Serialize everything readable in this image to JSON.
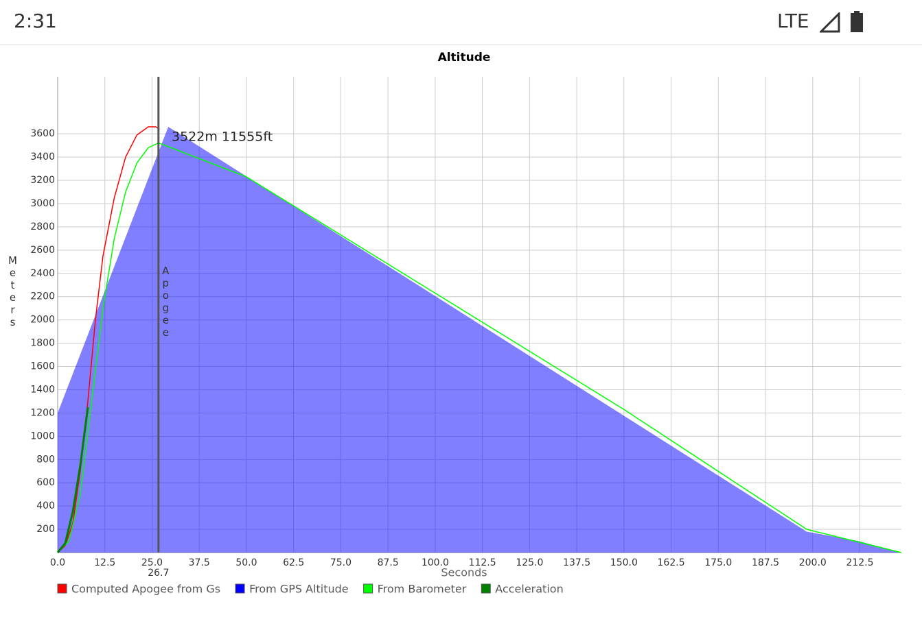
{
  "status_bar": {
    "time": "2:31",
    "network": "LTE"
  },
  "chart_data": {
    "type": "line",
    "title": "Altitude",
    "x_label": "Seconds",
    "y_label": "Meters",
    "annotation": "3522m 11555ft",
    "apogee_label": "Apogee",
    "apogee_x": 26.7,
    "xlim": [
      0,
      223.5
    ],
    "ylim": [
      0,
      4090
    ],
    "xticks": [
      {
        "value": 0,
        "label": "0.0"
      },
      12.5,
      {
        "value": 25,
        "label": "25.0"
      },
      37.5,
      {
        "value": 50,
        "label": "50.0"
      },
      62.5,
      {
        "value": 75,
        "label": "75.0"
      },
      87.5,
      {
        "value": 100,
        "label": "100.0"
      },
      112.5,
      {
        "value": 125,
        "label": "125.0"
      },
      137.5,
      {
        "value": 150,
        "label": "150.0"
      },
      162.5,
      {
        "value": 175,
        "label": "175.0"
      },
      187.5,
      {
        "value": 200,
        "label": "200.0"
      },
      212.5
    ],
    "yticks": [
      200,
      400,
      600,
      800,
      1000,
      1200,
      1400,
      1600,
      1800,
      2000,
      2200,
      2400,
      2600,
      2800,
      3000,
      3200,
      3400,
      3600
    ],
    "grid": true,
    "series": [
      {
        "name": "Computed Apogee from Gs",
        "color": "#ff0000",
        "style": "line",
        "x": [
          0,
          2,
          4,
          6,
          8,
          10,
          12,
          15,
          18,
          21,
          24,
          26,
          27
        ],
        "values": [
          0,
          60,
          250,
          700,
          1300,
          2000,
          2550,
          3050,
          3400,
          3590,
          3660,
          3660,
          3640
        ]
      },
      {
        "name": "From GPS Altitude",
        "color": "#0000ff",
        "style": "area",
        "x": [
          0,
          29.3,
          198.4,
          212,
          223.5
        ],
        "values": [
          1200,
          3660,
          180,
          100,
          0
        ]
      },
      {
        "name": "From Barometer",
        "color": "#00ff00",
        "style": "line",
        "x": [
          0,
          3,
          6,
          9,
          12,
          15,
          18,
          21,
          24,
          26.7,
          50,
          100,
          150,
          198.4,
          223.5
        ],
        "values": [
          0,
          100,
          500,
          1300,
          2100,
          2700,
          3100,
          3350,
          3480,
          3522,
          3230,
          2230,
          1230,
          200,
          0
        ]
      },
      {
        "name": "Acceleration",
        "color": "#008000",
        "style": "line",
        "x": [
          0,
          2,
          4,
          6,
          7,
          8
        ],
        "values": [
          0,
          80,
          350,
          750,
          1000,
          1250
        ]
      }
    ]
  }
}
